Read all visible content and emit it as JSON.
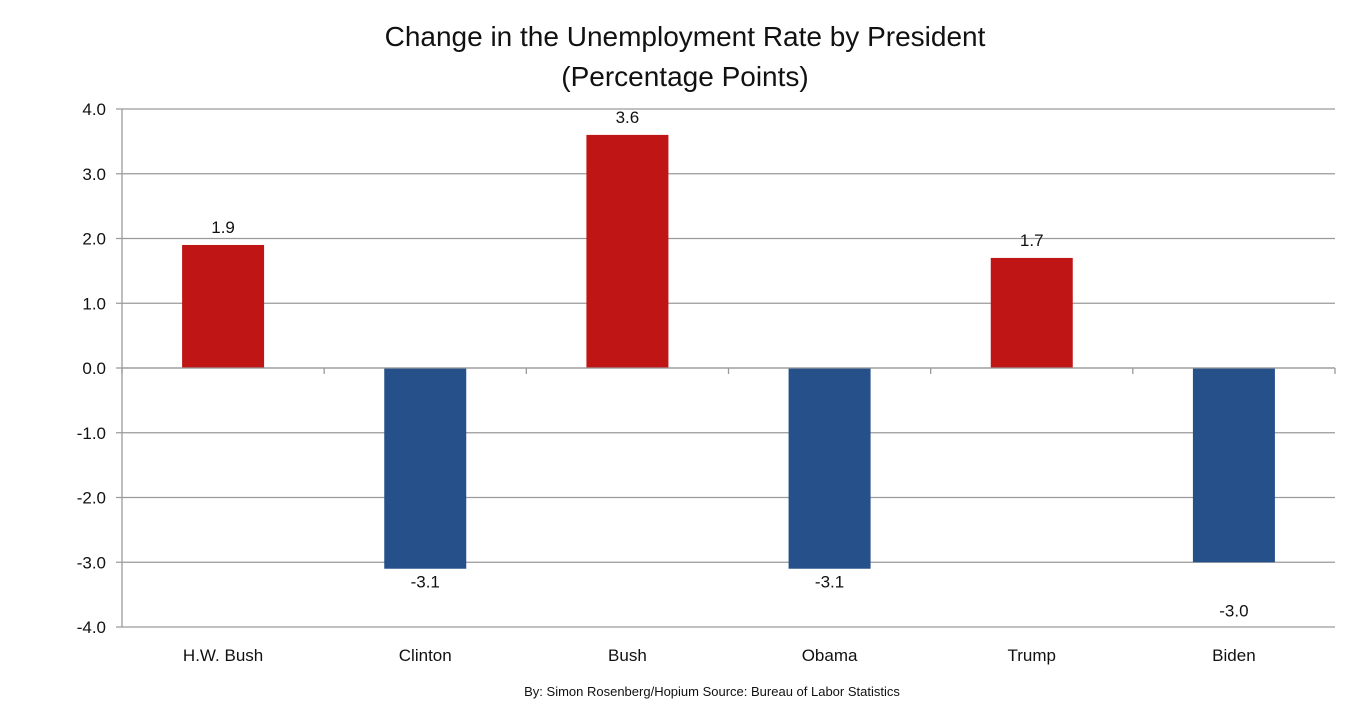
{
  "chart_data": {
    "type": "bar",
    "title_line1": "Change in the Unemployment Rate by President",
    "title_line2": "(Percentage Points)",
    "categories": [
      "H.W. Bush",
      "Clinton",
      "Bush",
      "Obama",
      "Trump",
      "Biden"
    ],
    "values": [
      1.9,
      -3.1,
      3.6,
      -3.1,
      1.7,
      -3.0
    ],
    "value_labels": [
      "1.9",
      "-3.1",
      "3.6",
      "-3.1",
      "1.7",
      "-3.0"
    ],
    "colors": [
      "#c01515",
      "#25508a",
      "#c01515",
      "#25508a",
      "#c01515",
      "#25508a"
    ],
    "ylim": [
      -4.0,
      4.0
    ],
    "yticks": [
      4.0,
      3.0,
      2.0,
      1.0,
      0.0,
      -1.0,
      -2.0,
      -3.0,
      -4.0
    ],
    "ytick_labels": [
      "4.0",
      "3.0",
      "2.0",
      "1.0",
      "0.0",
      "-1.0",
      "-2.0",
      "-3.0",
      "-4.0"
    ],
    "grid": true,
    "xlabel": "",
    "ylabel": "",
    "credit": "By: Simon Rosenberg/Hopium Source: Bureau of Labor Statistics"
  }
}
